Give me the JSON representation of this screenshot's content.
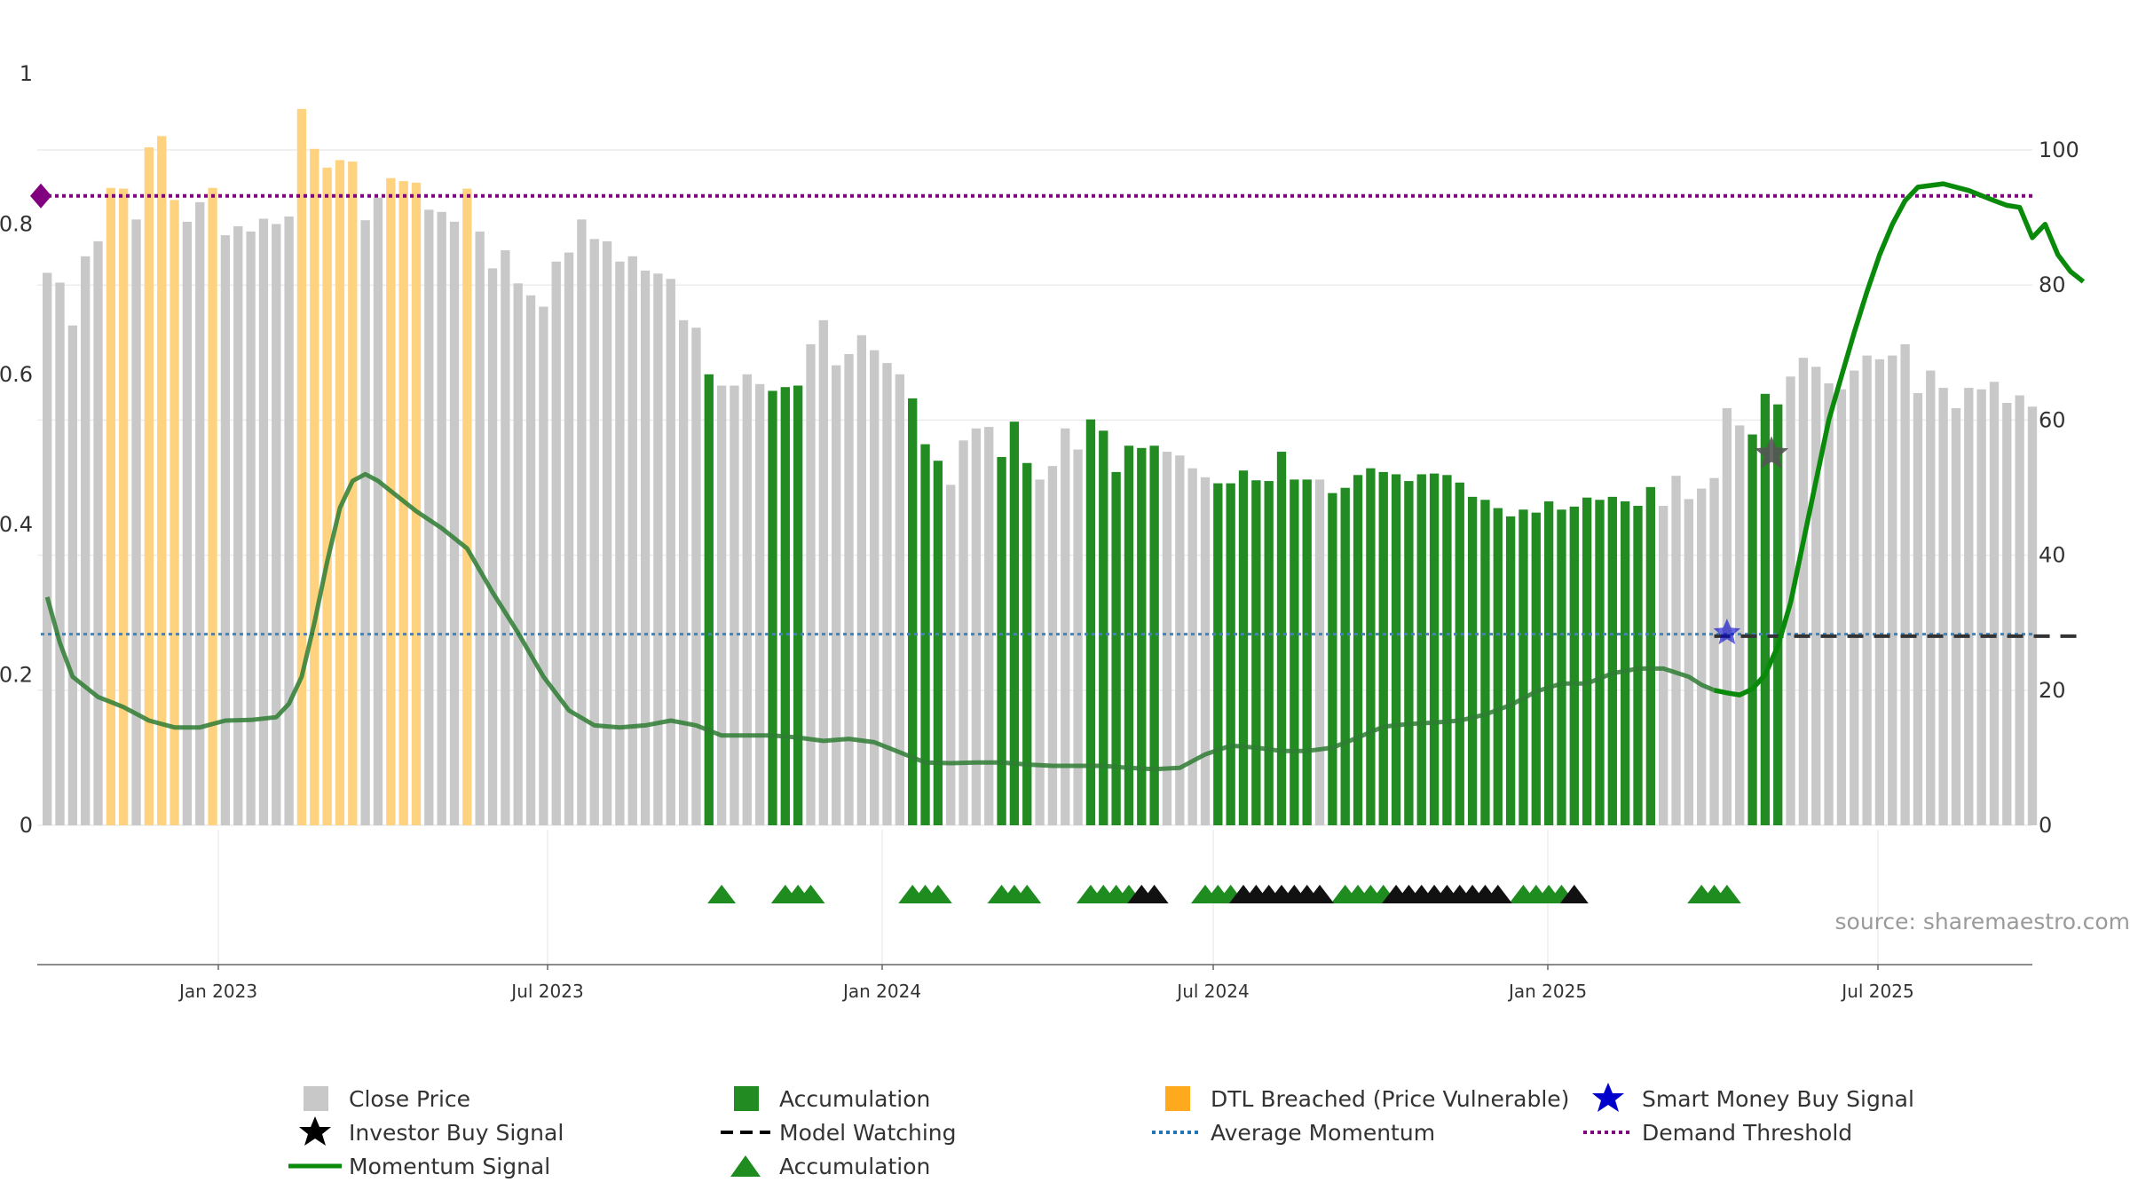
{
  "chart_data": {
    "type": "bar",
    "title": "",
    "source_label": "source: sharemaestro.com",
    "x_ticks": [
      "Jan 2023",
      "Jul 2023",
      "Jan 2024",
      "Jul 2024",
      "Jan 2025",
      "Jul 2025"
    ],
    "left_axis": {
      "ylim": [
        0,
        1
      ],
      "ticks": [
        0,
        0.2,
        0.4,
        0.6,
        0.8
      ],
      "top_label": "1"
    },
    "right_axis": {
      "ylim": [
        0,
        100
      ],
      "ticks": [
        0,
        20,
        40,
        60,
        80,
        100
      ]
    },
    "grid": true,
    "legend_position": "bottom",
    "colors": {
      "close": "#c8c8c8",
      "accumulation": "#228b22",
      "dtl": "#ffd27f",
      "momentum": "#2e7d32",
      "momentum_recent": "#0a8a0a",
      "average": "#4682b4",
      "threshold": "#800080",
      "triangle_green": "#1e8c1e",
      "triangle_black": "#111111",
      "smart_money": "#0000cc",
      "investor": "#555555"
    },
    "bar_categories": [
      "C",
      "C",
      "C",
      "C",
      "C",
      "D",
      "D",
      "C",
      "D",
      "D",
      "D",
      "C",
      "C",
      "D",
      "C",
      "C",
      "C",
      "C",
      "C",
      "C",
      "D",
      "D",
      "D",
      "D",
      "D",
      "C",
      "C",
      "D",
      "D",
      "D",
      "C",
      "C",
      "C",
      "D",
      "C",
      "C",
      "C",
      "C",
      "C",
      "C",
      "C",
      "C",
      "C",
      "C",
      "C",
      "C",
      "C",
      "C",
      "C",
      "C",
      "C",
      "C",
      "A",
      "C",
      "C",
      "C",
      "C",
      "A",
      "A",
      "A",
      "C",
      "C",
      "C",
      "C",
      "C",
      "C",
      "C",
      "C",
      "A",
      "A",
      "A",
      "C",
      "C",
      "C",
      "C",
      "A",
      "A",
      "A",
      "C",
      "C",
      "C",
      "C",
      "A",
      "A",
      "A",
      "A",
      "A",
      "A",
      "C",
      "C",
      "C",
      "C",
      "A",
      "A",
      "A",
      "A",
      "A",
      "A",
      "A",
      "A",
      "C",
      "A",
      "A",
      "A",
      "A",
      "A",
      "A",
      "A",
      "A",
      "A",
      "A",
      "A",
      "A",
      "A",
      "A",
      "A",
      "A",
      "A",
      "A",
      "A",
      "A",
      "A",
      "A",
      "A",
      "A",
      "A",
      "A",
      "C",
      "C",
      "C",
      "C",
      "C",
      "C",
      "C",
      "A",
      "A",
      "A",
      "C",
      "C",
      "C",
      "C",
      "C",
      "C",
      "C",
      "C",
      "C",
      "C",
      "C",
      "C",
      "C",
      "C",
      "C",
      "C",
      "C",
      "C",
      "C",
      "C",
      "C",
      "C",
      "C",
      "C",
      "C",
      "C",
      "C"
    ],
    "bar_values": [
      0.735,
      0.722,
      0.665,
      0.757,
      0.777,
      0.848,
      0.847,
      0.806,
      0.902,
      0.917,
      0.832,
      0.803,
      0.829,
      0.848,
      0.785,
      0.797,
      0.79,
      0.807,
      0.8,
      0.81,
      0.953,
      0.9,
      0.875,
      0.885,
      0.883,
      0.805,
      0.835,
      0.861,
      0.857,
      0.855,
      0.819,
      0.816,
      0.803,
      0.847,
      0.79,
      0.741,
      0.765,
      0.721,
      0.705,
      0.69,
      0.75,
      0.762,
      0.806,
      0.78,
      0.777,
      0.75,
      0.757,
      0.738,
      0.734,
      0.727,
      0.672,
      0.662,
      0.6,
      0.585,
      0.585,
      0.6,
      0.587,
      0.578,
      0.583,
      0.585,
      0.64,
      0.672,
      0.612,
      0.627,
      0.652,
      0.632,
      0.615,
      0.6,
      0.568,
      0.507,
      0.485,
      0.453,
      0.512,
      0.528,
      0.53,
      0.49,
      0.537,
      0.482,
      0.46,
      0.478,
      0.528,
      0.5,
      0.54,
      0.525,
      0.47,
      0.505,
      0.502,
      0.505,
      0.497,
      0.492,
      0.475,
      0.463,
      0.455,
      0.455,
      0.472,
      0.459,
      0.458,
      0.497,
      0.46,
      0.46,
      0.46,
      0.442,
      0.449,
      0.466,
      0.475,
      0.47,
      0.467,
      0.458,
      0.467,
      0.468,
      0.466,
      0.456,
      0.437,
      0.433,
      0.422,
      0.411,
      0.42,
      0.416,
      0.431,
      0.42,
      0.424,
      0.436,
      0.433,
      0.437,
      0.431,
      0.425,
      0.45,
      0.425,
      0.465,
      0.434,
      0.448,
      0.462,
      0.555,
      0.532,
      0.52,
      0.574,
      0.56,
      0.597,
      0.622,
      0.61,
      0.588,
      0.58,
      0.605,
      0.625,
      0.62,
      0.625,
      0.64,
      0.575,
      0.605,
      0.582,
      0.555,
      0.582,
      0.58,
      0.59,
      0.562,
      0.572,
      0.557
    ],
    "series": [
      {
        "name": "Momentum Signal",
        "x": [
          0,
          1,
          2,
          4,
          6,
          8,
          10,
          12,
          14,
          16,
          18,
          19,
          20,
          21,
          22,
          23,
          24,
          25,
          26,
          27,
          29,
          31,
          33,
          35,
          37,
          39,
          41,
          43,
          45,
          47,
          49,
          51,
          53,
          55,
          57,
          59,
          61,
          63,
          65,
          67,
          69,
          71,
          73,
          75,
          77,
          79,
          81,
          83,
          85,
          87,
          89,
          91,
          93,
          95,
          97,
          99,
          101,
          103,
          105,
          107,
          109,
          111,
          113,
          115,
          117,
          119,
          121,
          123,
          125,
          127,
          129,
          130,
          131,
          132,
          133,
          134,
          135,
          136,
          137,
          138,
          139,
          140,
          141,
          142,
          143,
          144,
          145,
          146,
          147,
          149,
          151,
          153,
          154,
          155,
          156,
          157,
          158,
          159,
          160
        ],
        "y": [
          33.8,
          27,
          22,
          19,
          17.5,
          15.5,
          14.5,
          14.5,
          15.5,
          15.6,
          16,
          18,
          22,
          30,
          39,
          47,
          51,
          52,
          51,
          49.5,
          46.5,
          44,
          41,
          34.5,
          28.5,
          22,
          17,
          14.8,
          14.5,
          14.8,
          15.5,
          14.8,
          13.3,
          13.3,
          13.3,
          13,
          12.5,
          12.8,
          12.3,
          10.8,
          9.3,
          9.2,
          9.3,
          9.3,
          9,
          8.8,
          8.8,
          8.8,
          8.5,
          8.3,
          8.5,
          10.5,
          11.8,
          11.5,
          11,
          11,
          11.5,
          13,
          14.6,
          15,
          15.2,
          15.5,
          16.4,
          17.8,
          19.8,
          21,
          21,
          22.5,
          23.2,
          23.2,
          22,
          20.8,
          20,
          19.6,
          19.3,
          20.2,
          22.3,
          26.5,
          33,
          42,
          51,
          60,
          66.5,
          73,
          79,
          84.5,
          89,
          92.5,
          94.5,
          95,
          94,
          92.5,
          91.8,
          91.5,
          87,
          89,
          84.5,
          82,
          80.5
        ]
      },
      {
        "name": "Average Momentum",
        "y_constant": 28.3
      },
      {
        "name": "Demand Threshold",
        "y_constant": 93.2
      }
    ],
    "triangles": {
      "green": [
        53,
        58,
        59,
        60,
        68,
        69,
        70,
        75,
        76,
        77,
        82,
        83,
        84,
        85,
        91,
        92,
        93,
        102,
        103,
        104,
        105,
        116,
        117,
        118,
        119,
        130,
        131,
        132
      ],
      "black": [
        86,
        87,
        94,
        95,
        96,
        97,
        98,
        99,
        100,
        106,
        107,
        108,
        109,
        110,
        111,
        112,
        113,
        114,
        120
      ]
    },
    "model_watching": {
      "x_start": 131,
      "x_end": 160,
      "y": 28
    },
    "smart_money_buy": {
      "x": 132,
      "y": 28.5
    },
    "investor_buy": {
      "x": 135.5,
      "y": 55
    },
    "threshold_marker": {
      "x": 0,
      "y": 93.2
    },
    "legend": [
      {
        "label": "Close Price",
        "symbol": "square-gray"
      },
      {
        "label": "Accumulation",
        "symbol": "square-green"
      },
      {
        "label": "DTL Breached (Price Vulnerable)",
        "symbol": "square-orange"
      },
      {
        "label": "Smart Money Buy Signal",
        "symbol": "star-blue"
      },
      {
        "label": "Investor Buy Signal",
        "symbol": "star-black"
      },
      {
        "label": "Model Watching",
        "symbol": "dash-black"
      },
      {
        "label": "Average Momentum",
        "symbol": "dotted-blue"
      },
      {
        "label": "Demand Threshold",
        "symbol": "dotted-purple"
      },
      {
        "label": "Momentum Signal",
        "symbol": "line-green"
      },
      {
        "label": "Accumulation",
        "symbol": "triangle-green"
      }
    ]
  }
}
